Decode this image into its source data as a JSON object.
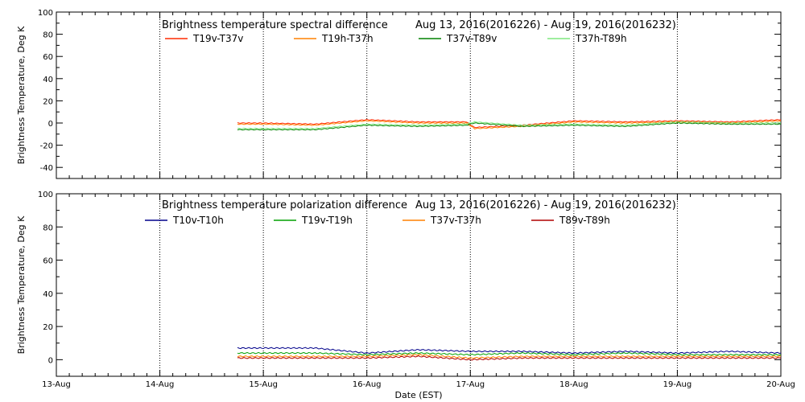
{
  "chart_data": [
    {
      "type": "line",
      "title_left": "Brightness temperature spectral difference",
      "title_right": "Aug 13, 2016(2016226) - Aug 19, 2016(2016232)",
      "ylabel": "Brightness Temperature, Deg K",
      "xlabel": "",
      "x_ticks": [
        "13-Aug",
        "14-Aug",
        "15-Aug",
        "16-Aug",
        "17-Aug",
        "18-Aug",
        "19-Aug",
        "20-Aug"
      ],
      "xlim": [
        "2016-08-13T00:00",
        "2016-08-20T00:00"
      ],
      "ylim": [
        -50,
        100
      ],
      "y_ticks": [
        -40,
        -20,
        0,
        20,
        40,
        60,
        80,
        100
      ],
      "grid": "vertical dotted at day boundaries",
      "legend_placement": "top, two rows under title",
      "series": [
        {
          "name": "T19v-T37v",
          "color": "#ff2a00",
          "x": [
            "2016-08-14T18:00",
            "2016-08-15T00:00",
            "2016-08-15T12:00",
            "2016-08-16T00:00",
            "2016-08-16T12:00",
            "2016-08-16T23:00",
            "2016-08-17T01:00",
            "2016-08-17T12:00",
            "2016-08-18T00:00",
            "2016-08-18T12:00",
            "2016-08-19T00:00",
            "2016-08-19T12:00",
            "2016-08-20T00:00"
          ],
          "y": [
            0,
            0,
            -1,
            3,
            1,
            1,
            -4,
            -2,
            2,
            1,
            2,
            1,
            3
          ]
        },
        {
          "name": "T19h-T37h",
          "color": "#ff8000",
          "x": [
            "2016-08-14T18:00",
            "2016-08-15T00:00",
            "2016-08-15T12:00",
            "2016-08-16T00:00",
            "2016-08-16T12:00",
            "2016-08-16T23:00",
            "2016-08-17T01:00",
            "2016-08-17T12:00",
            "2016-08-18T00:00",
            "2016-08-18T12:00",
            "2016-08-19T00:00",
            "2016-08-19T12:00",
            "2016-08-20T00:00"
          ],
          "y": [
            -1,
            -1,
            -2,
            2,
            0,
            0,
            -5,
            -3,
            1,
            0,
            1,
            0,
            2
          ]
        },
        {
          "name": "T37v-T89v",
          "color": "#008000",
          "x": [
            "2016-08-14T18:00",
            "2016-08-15T00:00",
            "2016-08-15T12:00",
            "2016-08-16T00:00",
            "2016-08-16T12:00",
            "2016-08-16T23:00",
            "2016-08-17T01:00",
            "2016-08-17T12:00",
            "2016-08-18T00:00",
            "2016-08-18T12:00",
            "2016-08-19T00:00",
            "2016-08-19T12:00",
            "2016-08-20T00:00"
          ],
          "y": [
            -6,
            -6,
            -6,
            -2,
            -3,
            -2,
            0,
            -3,
            -2,
            -3,
            0,
            -1,
            -1
          ]
        },
        {
          "name": "T37h-T89h",
          "color": "#7fe97f",
          "x": [
            "2016-08-14T18:00",
            "2016-08-15T00:00",
            "2016-08-15T12:00",
            "2016-08-16T00:00",
            "2016-08-16T12:00",
            "2016-08-16T23:00",
            "2016-08-17T01:00",
            "2016-08-17T12:00",
            "2016-08-18T00:00",
            "2016-08-18T12:00",
            "2016-08-19T00:00",
            "2016-08-19T12:00",
            "2016-08-20T00:00"
          ],
          "y": [
            -5,
            -5,
            -5,
            -1,
            -2,
            -1,
            1,
            -2,
            -1,
            -2,
            1,
            0,
            0
          ]
        }
      ]
    },
    {
      "type": "line",
      "title_left": "Brightness temperature polarization difference",
      "title_right": "Aug 13, 2016(2016226) - Aug 19, 2016(2016232)",
      "ylabel": "Brightness Temperature, Deg K",
      "xlabel": "Date (EST)",
      "x_ticks": [
        "13-Aug",
        "14-Aug",
        "15-Aug",
        "16-Aug",
        "17-Aug",
        "18-Aug",
        "19-Aug",
        "20-Aug"
      ],
      "xlim": [
        "2016-08-13T00:00",
        "2016-08-20T00:00"
      ],
      "ylim": [
        -10,
        100
      ],
      "y_ticks": [
        0,
        20,
        40,
        60,
        80,
        100
      ],
      "grid": "vertical dotted at day boundaries",
      "legend_placement": "top, one row under title",
      "series": [
        {
          "name": "T10v-T10h",
          "color": "#00008b",
          "x": [
            "2016-08-14T18:00",
            "2016-08-15T00:00",
            "2016-08-15T12:00",
            "2016-08-16T00:00",
            "2016-08-16T12:00",
            "2016-08-17T00:00",
            "2016-08-17T12:00",
            "2016-08-18T00:00",
            "2016-08-18T12:00",
            "2016-08-19T00:00",
            "2016-08-19T12:00",
            "2016-08-20T00:00"
          ],
          "y": [
            7,
            7,
            7,
            4,
            6,
            5,
            5,
            4,
            5,
            4,
            5,
            4
          ]
        },
        {
          "name": "T19v-T19h",
          "color": "#00a000",
          "x": [
            "2016-08-14T18:00",
            "2016-08-15T00:00",
            "2016-08-15T12:00",
            "2016-08-16T00:00",
            "2016-08-16T12:00",
            "2016-08-17T00:00",
            "2016-08-17T12:00",
            "2016-08-18T00:00",
            "2016-08-18T12:00",
            "2016-08-19T00:00",
            "2016-08-19T12:00",
            "2016-08-20T00:00"
          ],
          "y": [
            4,
            4,
            4,
            3,
            4,
            3,
            4,
            3,
            4,
            3,
            3,
            3
          ]
        },
        {
          "name": "T37v-T37h",
          "color": "#ff8000",
          "x": [
            "2016-08-14T18:00",
            "2016-08-15T00:00",
            "2016-08-15T12:00",
            "2016-08-16T00:00",
            "2016-08-16T12:00",
            "2016-08-17T00:00",
            "2016-08-17T12:00",
            "2016-08-18T00:00",
            "2016-08-18T12:00",
            "2016-08-19T00:00",
            "2016-08-19T12:00",
            "2016-08-20T00:00"
          ],
          "y": [
            2,
            2,
            2,
            2,
            3,
            1,
            2,
            2,
            2,
            2,
            2,
            2
          ]
        },
        {
          "name": "T89v-T89h",
          "color": "#b00000",
          "x": [
            "2016-08-14T18:00",
            "2016-08-15T00:00",
            "2016-08-15T12:00",
            "2016-08-16T00:00",
            "2016-08-16T12:00",
            "2016-08-17T00:00",
            "2016-08-17T12:00",
            "2016-08-18T00:00",
            "2016-08-18T12:00",
            "2016-08-19T00:00",
            "2016-08-19T12:00",
            "2016-08-20T00:00"
          ],
          "y": [
            1,
            1,
            1,
            1,
            2,
            0,
            1,
            1,
            1,
            1,
            1,
            1
          ]
        }
      ]
    }
  ]
}
